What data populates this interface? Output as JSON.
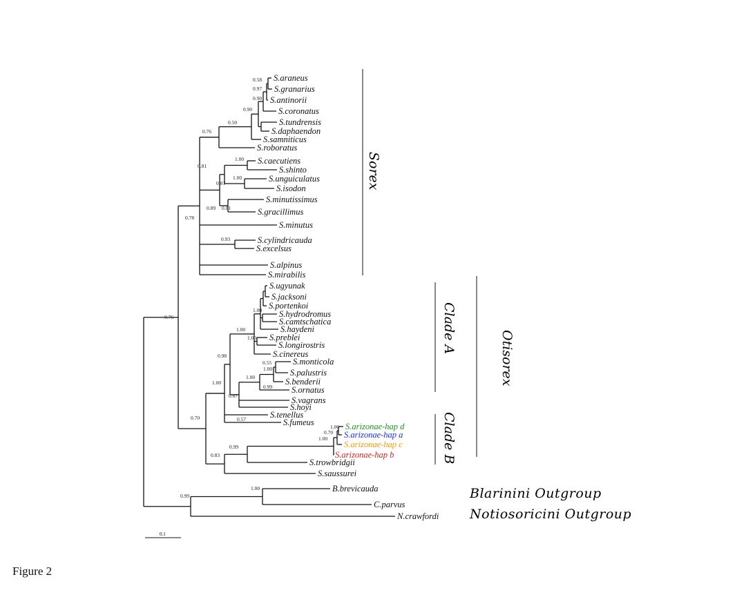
{
  "figure_label": "Figure 2",
  "colors": {
    "line": "#111111",
    "hap_d": "#2e8b2e",
    "hap_a": "#2233cc",
    "hap_c": "#e8a020",
    "hap_b": "#dd2222"
  },
  "taxa": [
    "S.araneus",
    "S.granarius",
    "S.antinorii",
    "S.coronatus",
    "S.tundrensis",
    "S.daphaendon",
    "S.samniticus",
    "S.roboratus",
    "S.caecutiens",
    "S.shinto",
    "S.unguiculatus",
    "S.isodon",
    "S.minutissimus",
    "S.gracillimus",
    "S.minutus",
    "S.cylindricauda",
    "S.excelsus",
    "S.alpinus",
    "S.mirabilis",
    "S.ugyunak",
    "S.jacksoni",
    "S.portenkoi",
    "S.hydrodromus",
    "S.camtschatica",
    "S.haydeni",
    "S.preblei",
    "S.longirostris",
    "S.cinereus",
    "S.monticola",
    "S.palustris",
    "S.benderii",
    "S.ornatus",
    "S.vagrans",
    "S.hoyi",
    "S.tenellus",
    "S.fumeus",
    "S.arizonae-hap d",
    "S.arizonae-hap a",
    "S.arizonae-hap c",
    "S.arizonae-hap b",
    "S.trowbridgii",
    "S.saussurei",
    "B.brevicauda",
    "C.parvus",
    "N.crawfordi"
  ],
  "support": [
    "0.58",
    "0.97",
    "0.90",
    "0.90",
    "0.50",
    "0.76",
    "1.00",
    "0.81",
    "1.00",
    "0.81",
    "0.89",
    "0.81",
    "0.93",
    "0.78",
    "0.81",
    "0.76",
    "1.00",
    "1.00",
    "1.00",
    "0.98",
    "0.55",
    "1.00",
    "1.00",
    "0.99",
    "1.00",
    "0.67",
    "0.57",
    "0.70",
    "1.00",
    "0.70",
    "1.00",
    "0.99",
    "0.83",
    "1.00",
    "0.99"
  ],
  "clades": {
    "sorex": "Sorex",
    "clade_a": "Clade A",
    "clade_b": "Clade B",
    "otisorex": "Otisorex"
  },
  "groups": {
    "blarinini": "Blarinini Outgroup",
    "notiosoricini": "Notiosoricini Outgroup"
  },
  "scale_label": "0.1"
}
